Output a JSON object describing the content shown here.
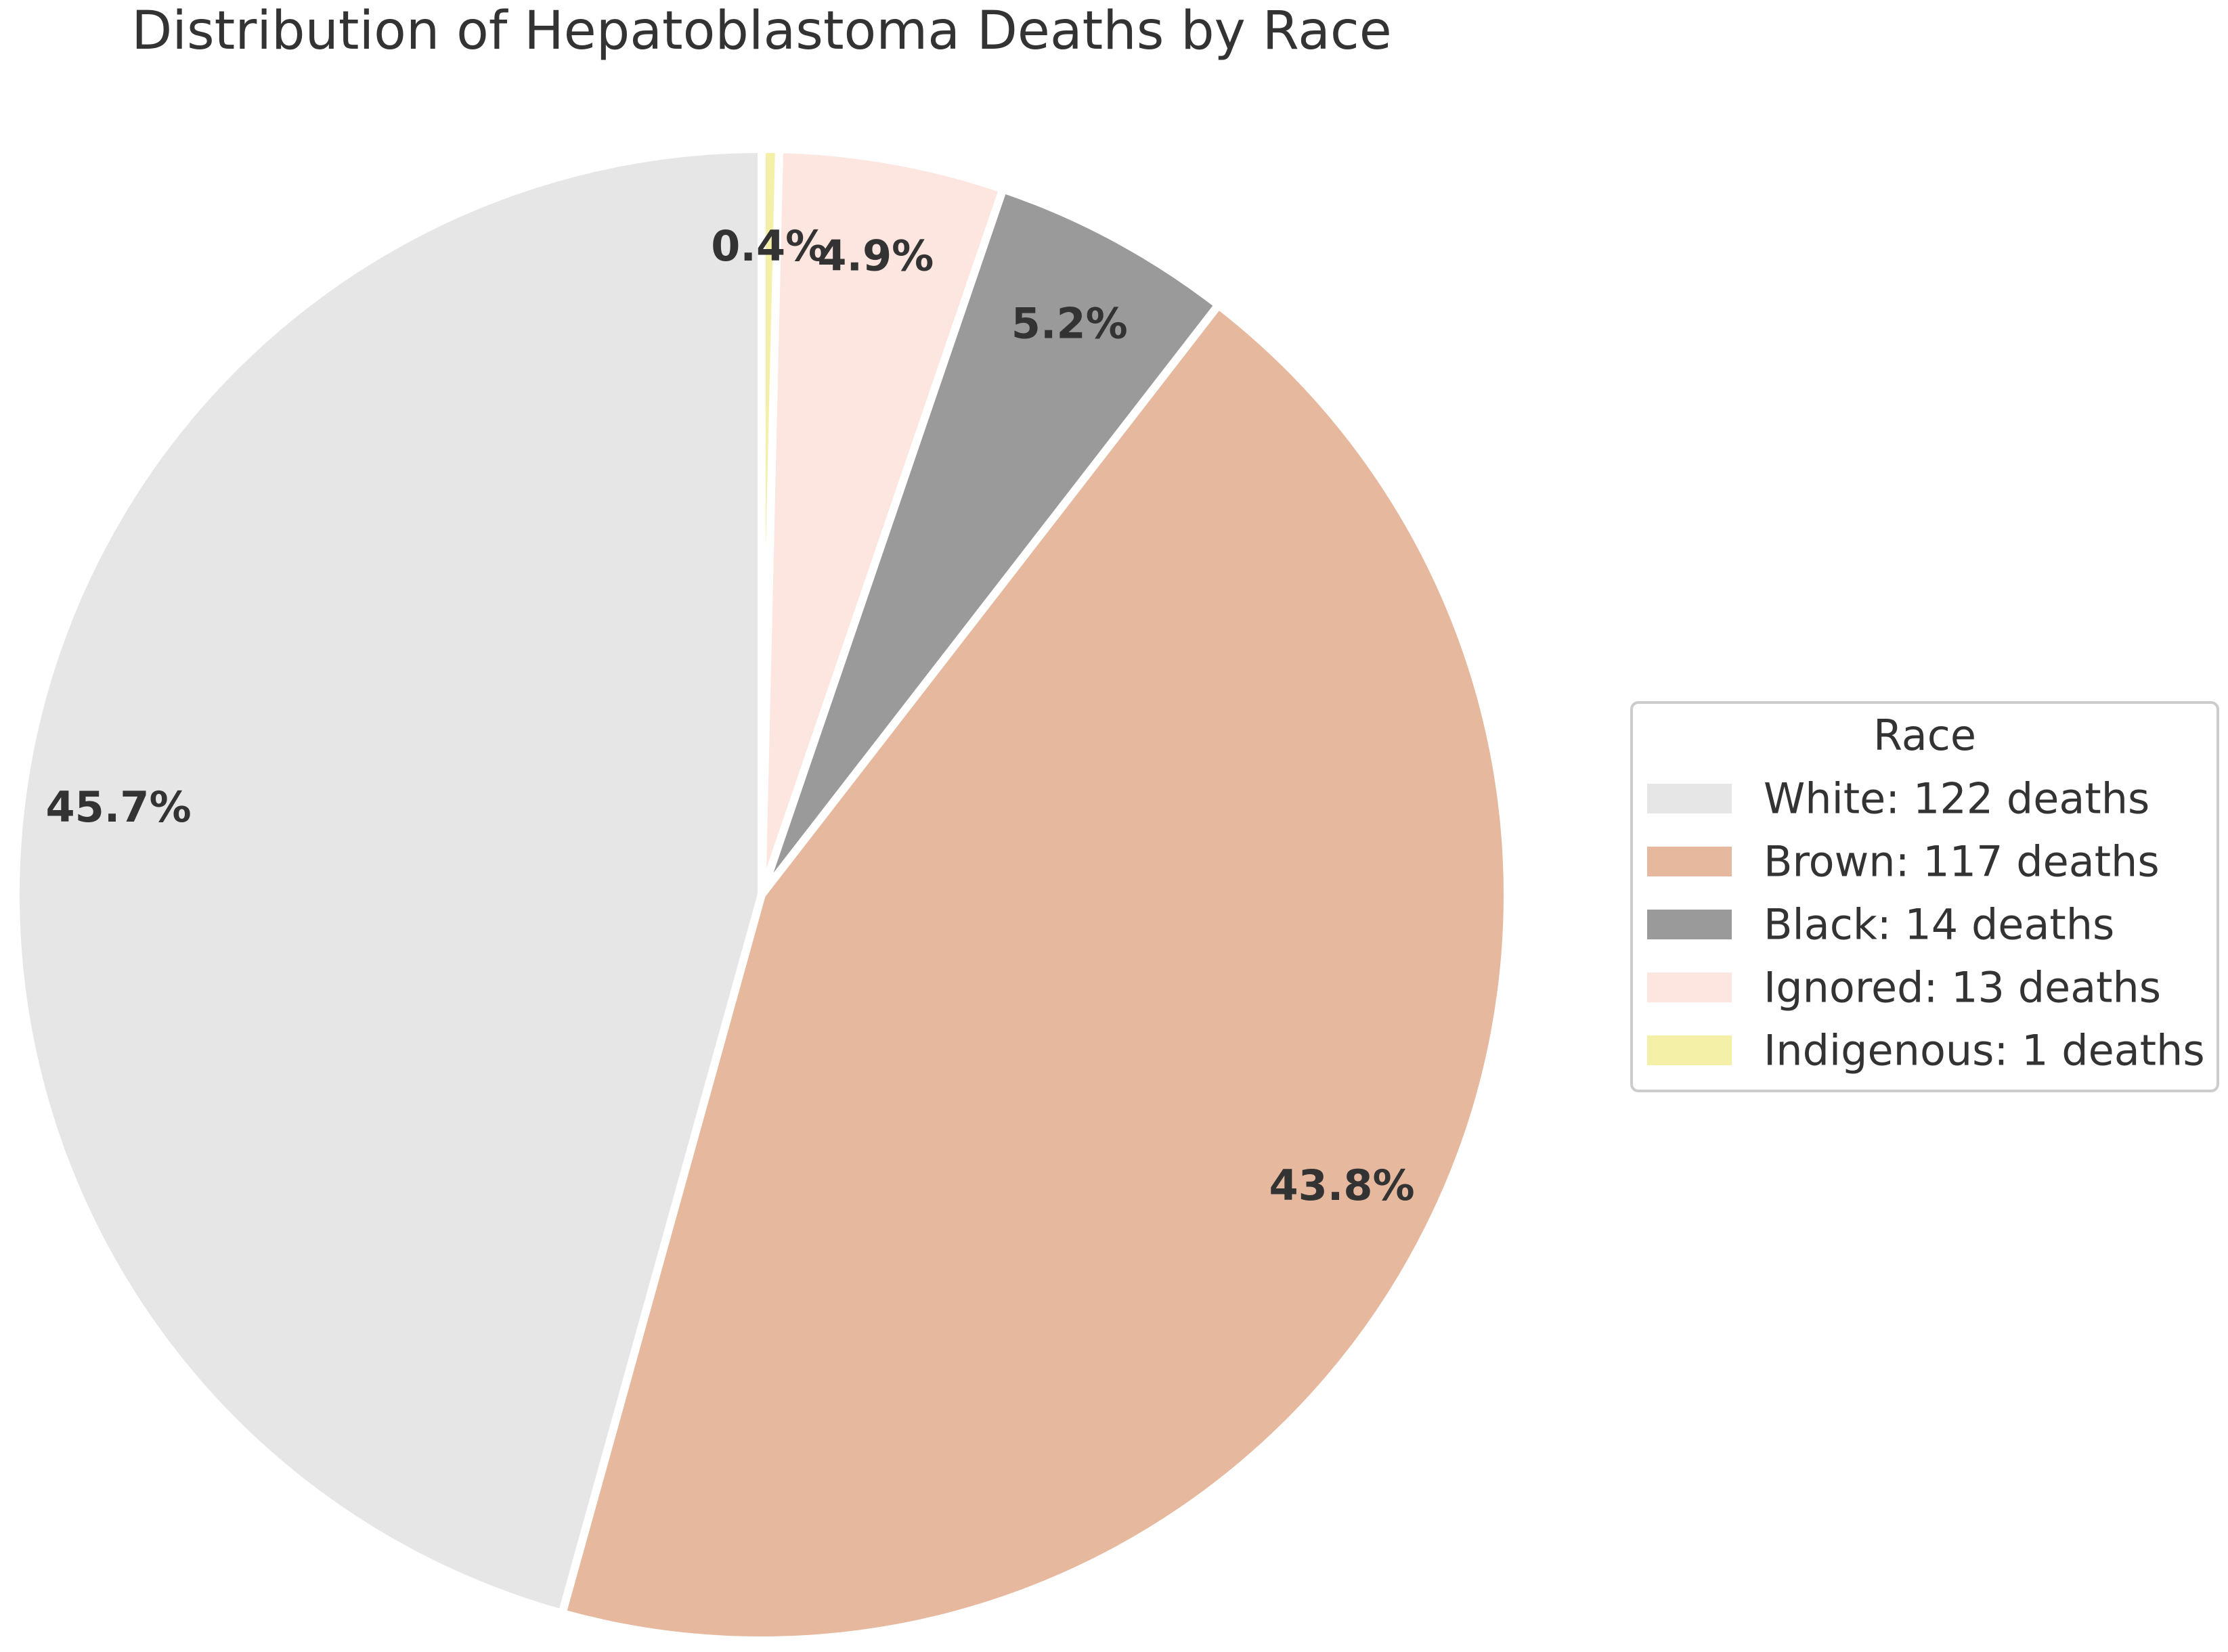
{
  "chart_data": {
    "type": "pie",
    "title": "Distribution of Hepatoblastoma Deaths by Race",
    "slices": [
      {
        "category": "White",
        "value": 122,
        "percent_label": "45.7%",
        "legend_label": "White: 122 deaths",
        "color": "#e6e6e6"
      },
      {
        "category": "Brown",
        "value": 117,
        "percent_label": "43.8%",
        "legend_label": "Brown: 117 deaths",
        "color": "#e6b99f"
      },
      {
        "category": "Black",
        "value": 14,
        "percent_label": "5.2%",
        "legend_label": "Black: 14 deaths",
        "color": "#9a9a9a"
      },
      {
        "category": "Ignored",
        "value": 13,
        "percent_label": "4.9%",
        "legend_label": "Ignored: 13 deaths",
        "color": "#fde6df"
      },
      {
        "category": "Indigenous",
        "value": 1,
        "percent_label": "0.4%",
        "legend_label": "Indigenous: 1 deaths",
        "color": "#f5f0a8"
      }
    ],
    "legend": {
      "title": "Race",
      "placement": "center-right"
    }
  }
}
